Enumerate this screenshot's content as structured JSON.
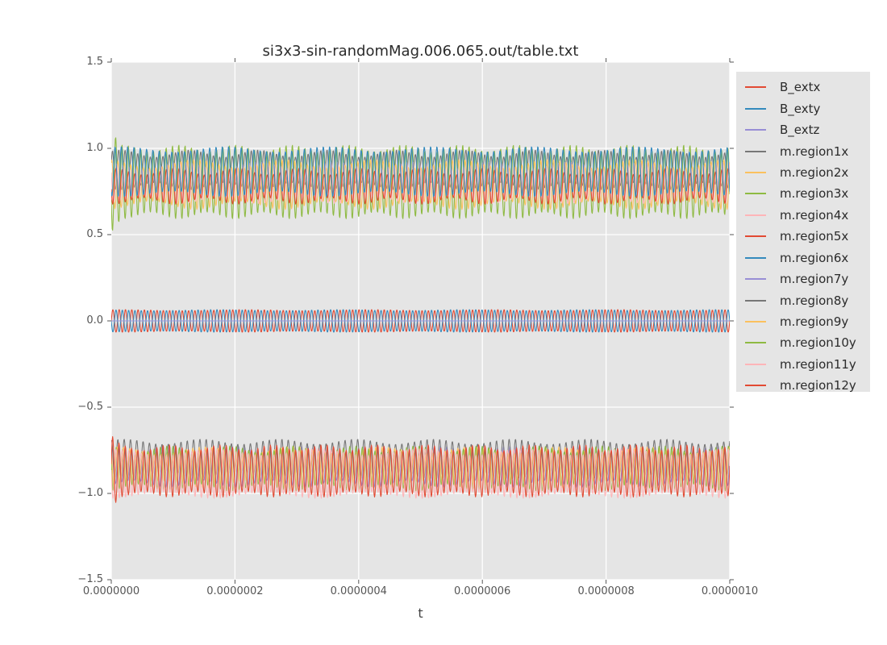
{
  "styles": {
    "figure_bg": "#ffffff",
    "plot_bg": "#e5e5e5",
    "grid_color": "#ffffff",
    "tick_color": "#555555",
    "tick_label_color": "#555555",
    "title_color": "#2b2b2b",
    "legend_bg": "#e5e5e5",
    "legend_text_color": "#2b2b2b"
  },
  "chart_data": {
    "type": "line",
    "title": "si3x3-sin-randomMag.006.065.out/table.txt",
    "xlabel": "t",
    "ylabel": "",
    "xlim": [
      0,
      1e-06
    ],
    "ylim": [
      -1.5,
      1.5
    ],
    "grid": true,
    "legend_position": "right-outside",
    "x_tick_labels": [
      "0.0000000",
      "0.0000002",
      "0.0000004",
      "0.0000006",
      "0.0000008",
      "0.0000010"
    ],
    "y_tick_labels": [
      "1.5",
      "1.0",
      "0.5",
      "0.0",
      "−0.5",
      "−1.0",
      "−1.5"
    ],
    "oscillation_cycles": 98,
    "series": [
      {
        "name": "B_extx",
        "color": "#E24A33",
        "center": 0.0,
        "amplitude": 0.063,
        "phase": 0.0,
        "amp_mod": 0.05,
        "mod_freq": 5,
        "mod_phase": 1.0,
        "range": [
          -0.065,
          0.065
        ]
      },
      {
        "name": "B_exty",
        "color": "#348ABD",
        "center": 0.0,
        "amplitude": 0.063,
        "phase": 3.14,
        "amp_mod": 0.05,
        "mod_freq": 5,
        "mod_phase": 2.5,
        "range": [
          -0.065,
          0.065
        ]
      },
      {
        "name": "B_extz",
        "color": "#988ED5",
        "center": 0.0,
        "amplitude": 0.0,
        "phase": 0.0,
        "flat": true,
        "range": [
          0.0,
          0.0
        ]
      },
      {
        "name": "m.region1x",
        "color": "#777777",
        "center": 0.875,
        "amplitude": 0.095,
        "phase": 0.4,
        "amp_mod": 0.22,
        "mod_freq": 9,
        "mod_phase": 0.7,
        "range": [
          0.78,
          0.97
        ]
      },
      {
        "name": "m.region2x",
        "color": "#FBC15E",
        "center": 0.79,
        "amplitude": 0.12,
        "phase": 1.1,
        "amp_mod": 0.2,
        "mod_freq": 7,
        "mod_phase": 1.9,
        "range": [
          0.67,
          0.91
        ]
      },
      {
        "name": "m.region3x",
        "color": "#8EBA42",
        "center": 0.805,
        "amplitude": 0.195,
        "phase": 3.5,
        "amp_mod": 0.1,
        "mod_freq": 11,
        "mod_phase": 0.3,
        "spike_gain": 1.45,
        "range": [
          0.61,
          1.0
        ]
      },
      {
        "name": "m.region4x",
        "color": "#FFB5B8",
        "center": 0.8,
        "amplitude": 0.1,
        "phase": 2.6,
        "amp_mod": 0.2,
        "mod_freq": 8,
        "mod_phase": 2.2,
        "range": [
          0.7,
          0.9
        ]
      },
      {
        "name": "m.region5x",
        "color": "#E24A33",
        "center": 0.78,
        "amplitude": 0.085,
        "phase": 3.3,
        "amp_mod": 0.22,
        "mod_freq": 10,
        "mod_phase": 1.4,
        "range": [
          0.69,
          0.87
        ]
      },
      {
        "name": "m.region6x",
        "color": "#348ABD",
        "center": 0.865,
        "amplitude": 0.13,
        "phase": 4.1,
        "amp_mod": 0.12,
        "mod_freq": 6,
        "mod_phase": 0.9,
        "range": [
          0.735,
          1.0
        ]
      },
      {
        "name": "m.region7y",
        "color": "#988ED5",
        "center": -0.845,
        "amplitude": 0.1,
        "phase": 0.6,
        "amp_mod": 0.2,
        "mod_freq": 9,
        "mod_phase": 2.8,
        "range": [
          -0.945,
          -0.745
        ]
      },
      {
        "name": "m.region8y",
        "color": "#777777",
        "center": -0.8,
        "amplitude": 0.1,
        "phase": 1.3,
        "amp_mod": 0.15,
        "mod_freq": 8,
        "mod_phase": 0.5,
        "range": [
          -0.9,
          -0.7
        ]
      },
      {
        "name": "m.region9y",
        "color": "#FBC15E",
        "center": -0.85,
        "amplitude": 0.1,
        "phase": 2.1,
        "amp_mod": 0.2,
        "mod_freq": 7,
        "mod_phase": 1.2,
        "range": [
          -0.95,
          -0.75
        ]
      },
      {
        "name": "m.region10y",
        "color": "#8EBA42",
        "center": -0.855,
        "amplitude": 0.11,
        "phase": 2.9,
        "amp_mod": 0.18,
        "mod_freq": 10,
        "mod_phase": 2.0,
        "range": [
          -0.965,
          -0.745
        ]
      },
      {
        "name": "m.region11y",
        "color": "#FFB5B8",
        "center": -0.885,
        "amplitude": 0.125,
        "phase": 3.0,
        "amp_mod": 0.15,
        "mod_freq": 6,
        "mod_phase": 1.6,
        "range": [
          -1.01,
          -0.76
        ]
      },
      {
        "name": "m.region12y",
        "color": "#E24A33",
        "center": -0.87,
        "amplitude": 0.135,
        "phase": 0.2,
        "amp_mod": 0.12,
        "mod_freq": 12,
        "mod_phase": 0.8,
        "spike_gain": 1.4,
        "range": [
          -1.005,
          -0.685
        ]
      }
    ]
  }
}
